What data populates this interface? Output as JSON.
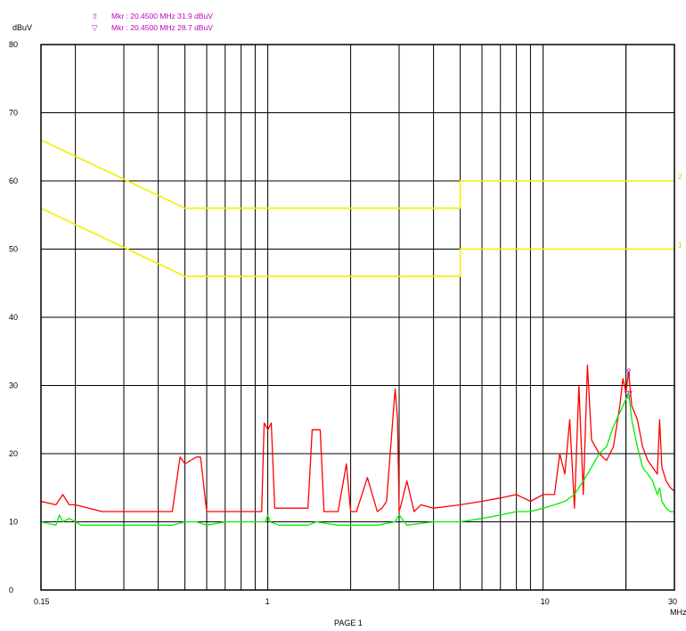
{
  "chart_data": {
    "type": "line",
    "ylabel": "dBuV",
    "xlabel": "MHz",
    "footer": "PAGE 1",
    "x_scale": "log",
    "xlim": [
      0.15,
      30
    ],
    "ylim": [
      0,
      80
    ],
    "grid": true,
    "x_tick_labels": [
      {
        "value": 0.15,
        "label": "0.15"
      },
      {
        "value": 1,
        "label": "1"
      },
      {
        "value": 10,
        "label": "10"
      },
      {
        "value": 30,
        "label": "30"
      }
    ],
    "y_ticks": [
      0,
      10,
      20,
      30,
      40,
      50,
      60,
      70,
      80
    ],
    "markers": [
      {
        "symbol": "⇧",
        "text": "Mkr :   20.4500 MHz   31.9 dBuV",
        "x": 20.45,
        "y": 31.9,
        "color": "#c000c0"
      },
      {
        "symbol": "▽",
        "text": "Mkr :   20.4500 MHz   28.7 dBuV",
        "x": 20.45,
        "y": 28.7,
        "color": "#c000c0"
      }
    ],
    "limit_lines": [
      {
        "label": "2",
        "color": "#f0f000",
        "x": [
          0.15,
          0.5,
          5,
          5,
          30
        ],
        "y": [
          66,
          56,
          56,
          60,
          60
        ]
      },
      {
        "label": "1",
        "color": "#f0f000",
        "x": [
          0.15,
          0.5,
          5,
          5,
          30
        ],
        "y": [
          56,
          46,
          46,
          50,
          50
        ]
      }
    ],
    "series": [
      {
        "color": "#ff0000",
        "x": [
          0.15,
          0.17,
          0.18,
          0.19,
          0.2,
          0.25,
          0.3,
          0.45,
          0.48,
          0.5,
          0.55,
          0.57,
          0.6,
          0.62,
          0.65,
          0.7,
          0.8,
          0.95,
          0.97,
          1.0,
          1.03,
          1.06,
          1.2,
          1.4,
          1.45,
          1.55,
          1.6,
          1.8,
          1.93,
          2.0,
          2.1,
          2.3,
          2.5,
          2.6,
          2.7,
          2.9,
          2.96,
          3.0,
          3.05,
          3.2,
          3.4,
          3.5,
          3.6,
          4.0,
          5.0,
          6.0,
          7.0,
          8.0,
          9.0,
          10.0,
          11.0,
          11.5,
          12.0,
          12.5,
          13.0,
          13.5,
          14.0,
          14.5,
          15.0,
          16.0,
          17.0,
          18.0,
          19.0,
          19.5,
          20.0,
          20.45,
          21.0,
          22.0,
          23.0,
          24.0,
          25.0,
          26.0,
          26.5,
          27.0,
          28.0,
          29.0,
          30.0
        ],
        "y": [
          13,
          12.5,
          14,
          12.5,
          12.5,
          11.5,
          11.5,
          11.5,
          19.5,
          18.5,
          19.5,
          19.5,
          11.5,
          11.5,
          11.5,
          11.5,
          11.5,
          11.5,
          24.5,
          23.5,
          24.5,
          12,
          12,
          12,
          23.5,
          23.5,
          11.5,
          11.5,
          18.5,
          11.5,
          11.5,
          16.5,
          11.5,
          12,
          13,
          29.5,
          25,
          11.5,
          12.5,
          16,
          11.5,
          12,
          12.5,
          12,
          12.5,
          13,
          13.5,
          14,
          13,
          14,
          14,
          20,
          17,
          25,
          12,
          30,
          14,
          33,
          22,
          20,
          19,
          21,
          27,
          31,
          29,
          32,
          27,
          25,
          21,
          19,
          18,
          17,
          25,
          18,
          16,
          15,
          14.5
        ]
      },
      {
        "color": "#00ee00",
        "x": [
          0.15,
          0.17,
          0.175,
          0.18,
          0.19,
          0.21,
          0.3,
          0.45,
          0.5,
          0.55,
          0.6,
          0.7,
          0.9,
          0.98,
          1.0,
          1.02,
          1.1,
          1.4,
          1.5,
          1.8,
          2.0,
          2.5,
          2.9,
          3.0,
          3.2,
          4.0,
          5.0,
          6.0,
          7.0,
          8.0,
          9.0,
          10.0,
          11.0,
          12.0,
          13.0,
          14.0,
          15.0,
          16.0,
          17.0,
          18.0,
          19.0,
          20.0,
          20.45,
          21.0,
          22.0,
          23.0,
          24.0,
          25.0,
          26.0,
          26.5,
          27.0,
          28.0,
          29.0,
          30.0
        ],
        "y": [
          10,
          9.5,
          11,
          10,
          10.5,
          9.5,
          9.5,
          9.5,
          10,
          10,
          9.5,
          10,
          10,
          10,
          11,
          10,
          9.5,
          9.5,
          10,
          9.5,
          9.5,
          9.5,
          10,
          11,
          9.5,
          10,
          10,
          10.5,
          11,
          11.5,
          11.5,
          12,
          12.5,
          13,
          14,
          16,
          18,
          20,
          21,
          24,
          26,
          28,
          29,
          25,
          21,
          18,
          17,
          16,
          14,
          15,
          13,
          12,
          11.5,
          11.5
        ]
      }
    ]
  }
}
